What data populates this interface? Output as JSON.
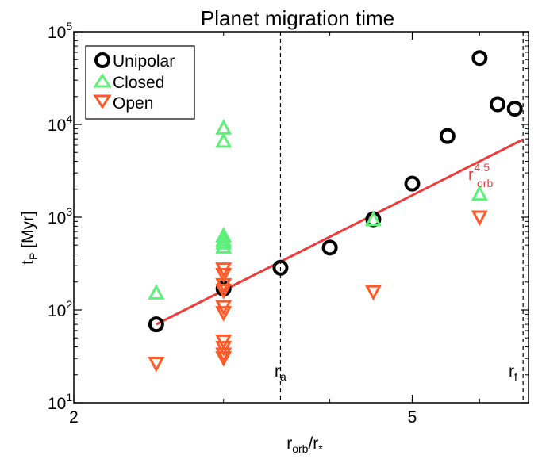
{
  "chart_data": {
    "type": "scatter",
    "title": "Planet migration time",
    "xlabel": {
      "main": "r",
      "sub1": "orb",
      "sep": "/r",
      "sub2": "*"
    },
    "ylabel": {
      "main": "t",
      "sub": "P",
      "rest": " [Myr]"
    },
    "x_scale": "log",
    "y_scale": "log",
    "xlim": [
      2.0,
      6.85
    ],
    "ylim": [
      10,
      100000
    ],
    "x_ticks": [
      {
        "value": 2,
        "label": "2"
      },
      {
        "value": 5,
        "label": "5"
      }
    ],
    "y_ticks": [
      {
        "value": 10,
        "base": "10",
        "exp": "1"
      },
      {
        "value": 100,
        "base": "10",
        "exp": "2"
      },
      {
        "value": 1000,
        "base": "10",
        "exp": "3"
      },
      {
        "value": 10000,
        "base": "10",
        "exp": "4"
      },
      {
        "value": 100000,
        "base": "10",
        "exp": "5"
      }
    ],
    "series": [
      {
        "name": "Unipolar",
        "marker": "circle",
        "color": "#000000",
        "points": [
          [
            2.5,
            70
          ],
          [
            3.0,
            170
          ],
          [
            3.5,
            285
          ],
          [
            4.0,
            470
          ],
          [
            4.5,
            950
          ],
          [
            5.0,
            2300
          ],
          [
            5.5,
            7500
          ],
          [
            6.0,
            52000
          ],
          [
            6.3,
            16500
          ],
          [
            6.6,
            14800
          ]
        ]
      },
      {
        "name": "Closed",
        "marker": "triangle-up",
        "color": "#5ef07a",
        "points": [
          [
            2.5,
            150
          ],
          [
            3.0,
            9000
          ],
          [
            3.0,
            6500
          ],
          [
            3.0,
            620
          ],
          [
            3.0,
            560
          ],
          [
            3.0,
            520
          ],
          [
            3.0,
            470
          ],
          [
            4.5,
            930
          ],
          [
            6.0,
            1750
          ]
        ]
      },
      {
        "name": "Open",
        "marker": "triangle-down",
        "color": "#ff5a2a",
        "points": [
          [
            2.5,
            27
          ],
          [
            3.0,
            280
          ],
          [
            3.0,
            245
          ],
          [
            3.0,
            190
          ],
          [
            3.0,
            165
          ],
          [
            3.0,
            110
          ],
          [
            3.0,
            95
          ],
          [
            3.0,
            47
          ],
          [
            3.0,
            40
          ],
          [
            3.0,
            34
          ],
          [
            3.0,
            31
          ],
          [
            4.5,
            160
          ],
          [
            6.0,
            1020
          ]
        ]
      }
    ],
    "fit_line": {
      "color": "#ee3b3b",
      "x": [
        2.5,
        6.75
      ],
      "y": [
        70,
        6900
      ],
      "label": {
        "main": "r",
        "sup": "4.5",
        "sub": "orb"
      }
    },
    "vlines": [
      {
        "x": 3.5,
        "label": {
          "main": "r",
          "sub": "a"
        }
      },
      {
        "x": 6.75,
        "label": {
          "main": "r",
          "sub": "f"
        }
      }
    ],
    "legend_position": "top-left"
  }
}
